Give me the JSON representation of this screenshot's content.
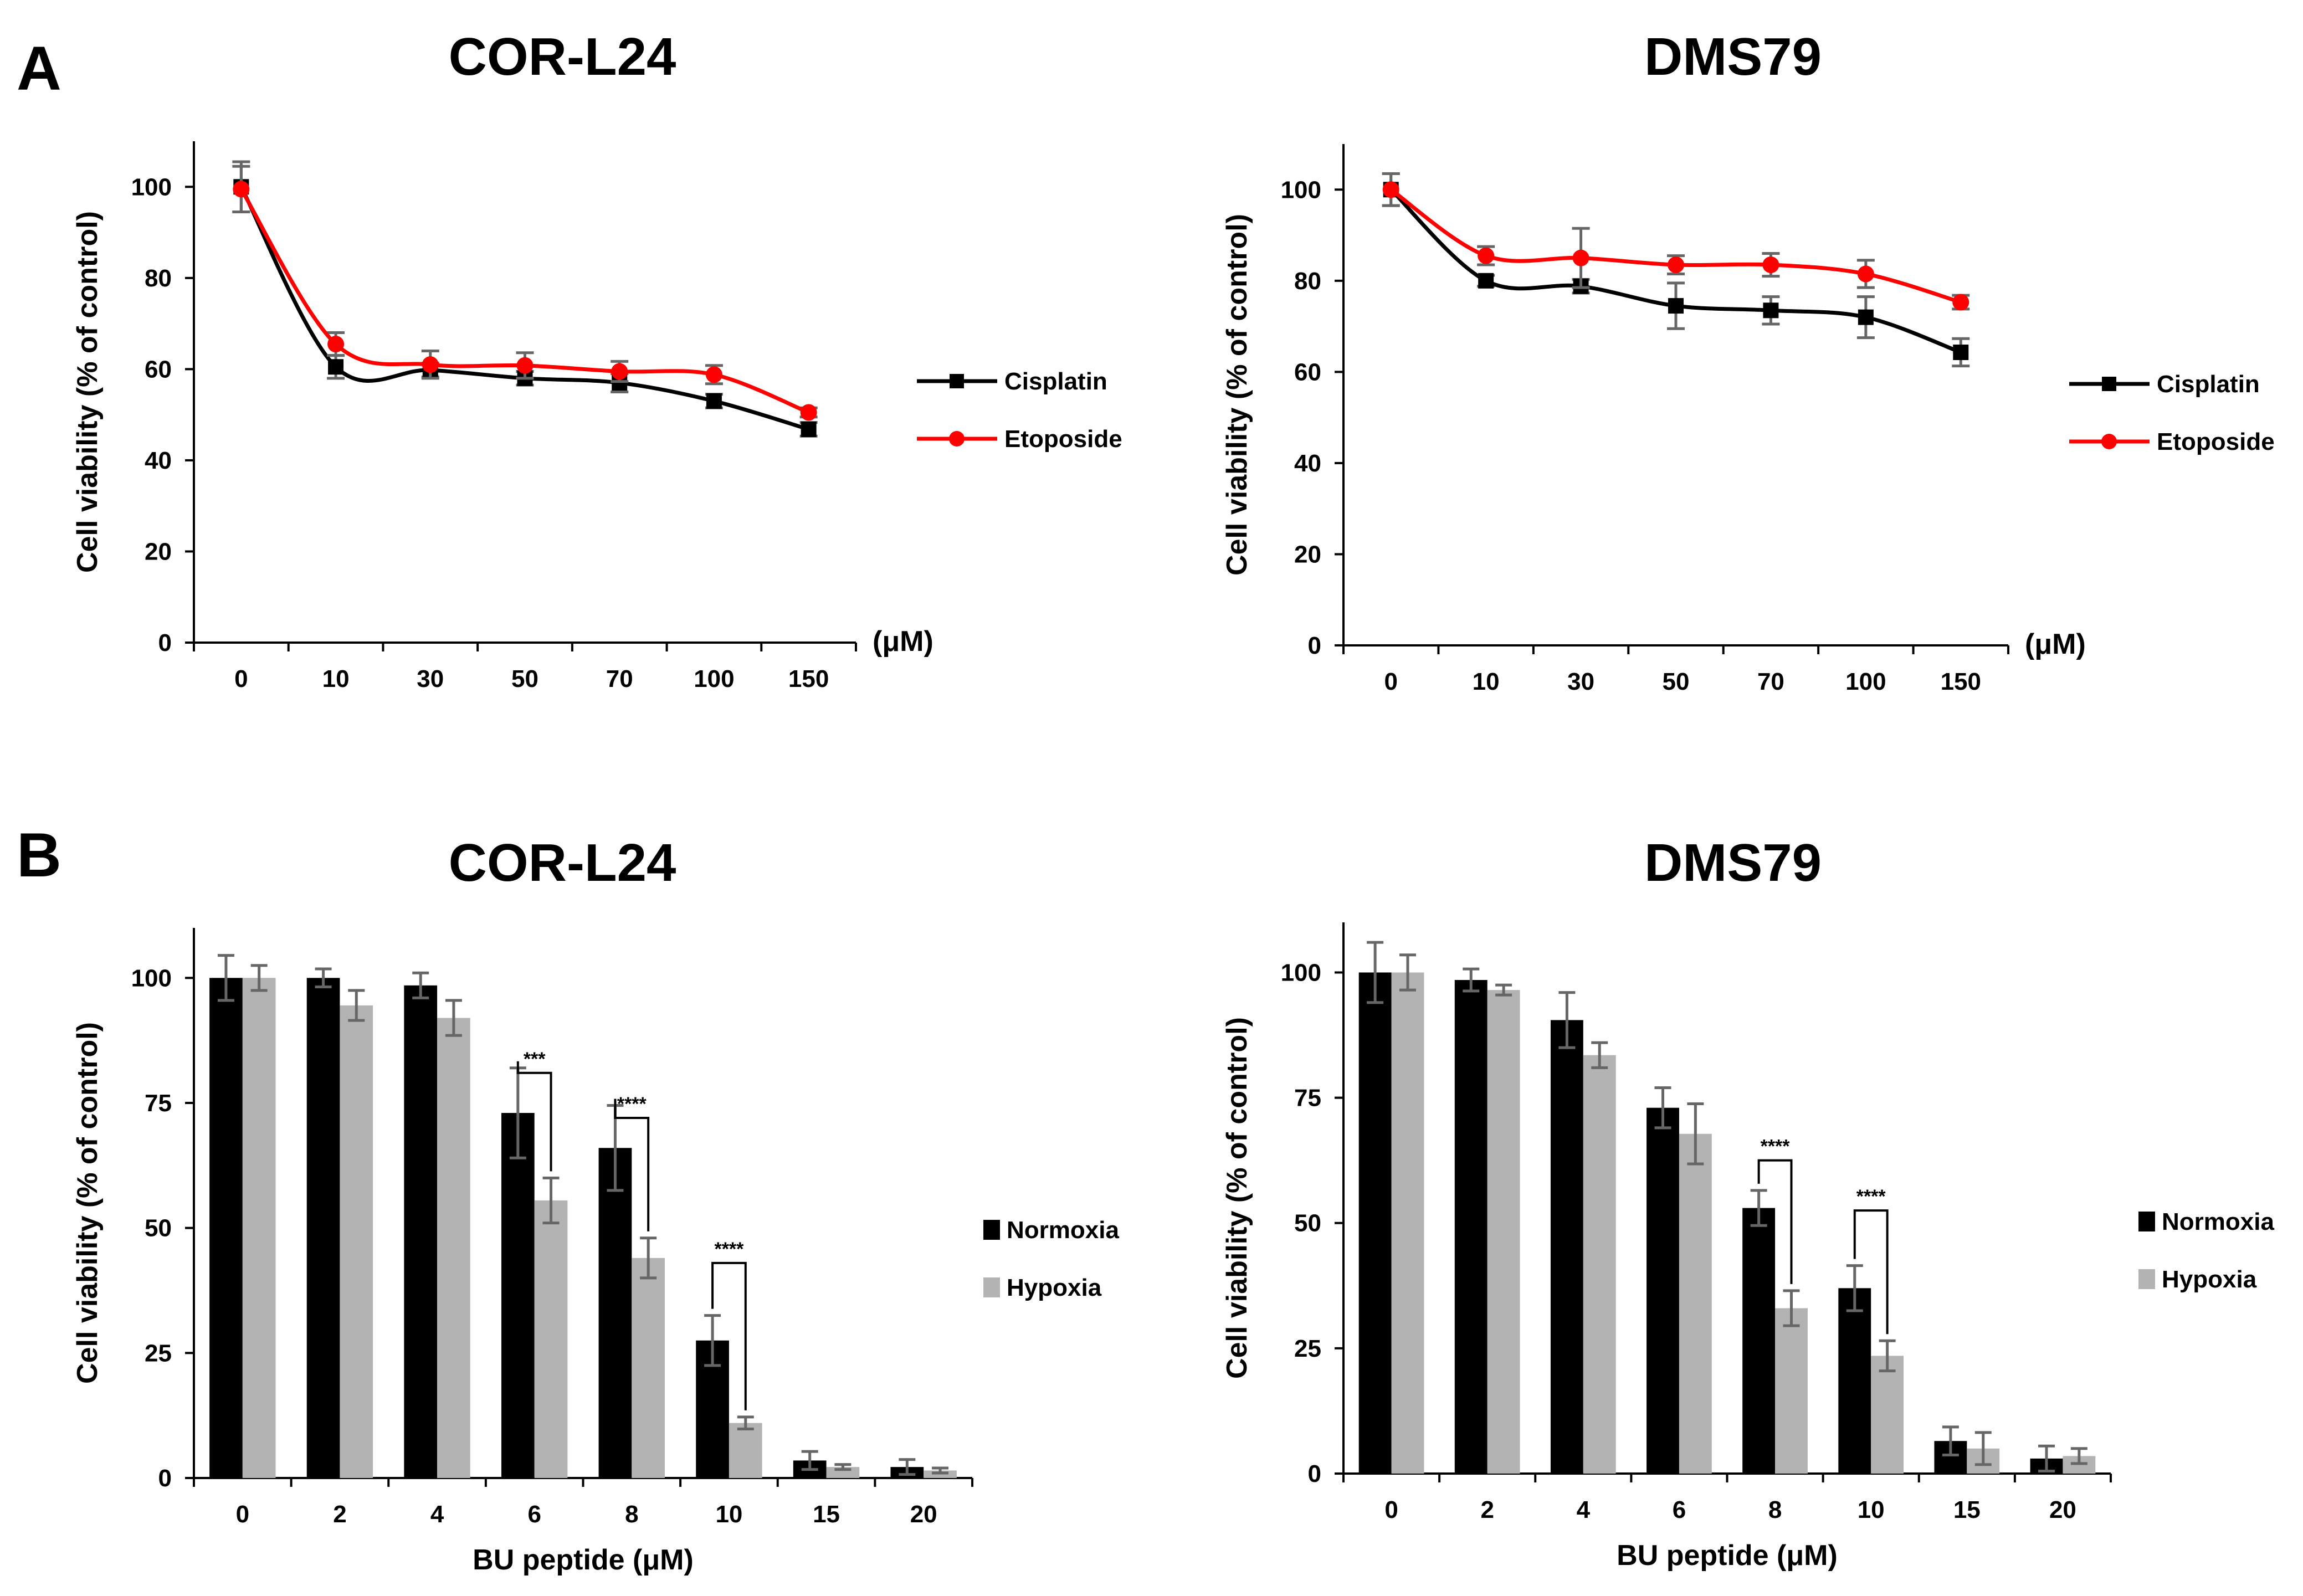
{
  "panels": {
    "A": "A",
    "B": "B"
  },
  "colors": {
    "cisplatin": "#000000",
    "etoposide": "#ff0000",
    "normoxia": "#000000",
    "hypoxia": "#b3b3b3",
    "error_bar": "#666666",
    "axis": "#000000"
  },
  "chart_data": [
    {
      "id": "A1",
      "panel": "A",
      "type": "line",
      "title": "COR-L24",
      "ylabel": "Cell viability (% of control)",
      "xlabel": "",
      "x_unit": "(μM)",
      "categories": [
        "0",
        "10",
        "30",
        "50",
        "70",
        "100",
        "150"
      ],
      "ylim": [
        0,
        110
      ],
      "yticks": [
        0,
        20,
        40,
        60,
        80,
        100
      ],
      "grid": false,
      "legend_position": "right",
      "series": [
        {
          "name": "Cisplatin",
          "color_key": "cisplatin",
          "marker": "square",
          "values": [
            100,
            60.5,
            59.8,
            58,
            57,
            53,
            46.8
          ],
          "errors": [
            5.5,
            2.5,
            1.5,
            1.5,
            2,
            1.5,
            1.5
          ]
        },
        {
          "name": "Etoposide",
          "color_key": "etoposide",
          "marker": "circle",
          "values": [
            99.5,
            65.5,
            61,
            60.8,
            59.5,
            58.8,
            50.5
          ],
          "errors": [
            5,
            2.5,
            3,
            2.8,
            2.2,
            2,
            1
          ]
        }
      ]
    },
    {
      "id": "A2",
      "panel": "A",
      "type": "line",
      "title": "DMS79",
      "ylabel": "Cell viability (% of control)",
      "xlabel": "",
      "x_unit": "(μM)",
      "categories": [
        "0",
        "10",
        "30",
        "50",
        "70",
        "100",
        "150"
      ],
      "ylim": [
        0,
        110
      ],
      "yticks": [
        0,
        20,
        40,
        60,
        80,
        100
      ],
      "grid": false,
      "legend_position": "right",
      "series": [
        {
          "name": "Cisplatin",
          "color_key": "cisplatin",
          "marker": "square",
          "values": [
            100,
            80,
            78.8,
            74.5,
            73.5,
            72,
            64.3
          ],
          "errors": [
            3.5,
            1.2,
            1.5,
            5,
            3,
            4.5,
            3
          ]
        },
        {
          "name": "Etoposide",
          "color_key": "etoposide",
          "marker": "circle",
          "values": [
            100,
            85.5,
            85,
            83.5,
            83.5,
            81.5,
            75.3
          ],
          "errors": [
            3.5,
            2,
            6.5,
            2,
            2.5,
            3,
            1.5
          ]
        }
      ]
    },
    {
      "id": "B1",
      "panel": "B",
      "type": "bar",
      "title": "COR-L24",
      "ylabel": "Cell viability (% of control)",
      "xlabel": "BU peptide (μM)",
      "categories": [
        "0",
        "2",
        "4",
        "6",
        "8",
        "10",
        "15",
        "20"
      ],
      "ylim": [
        0,
        110
      ],
      "yticks": [
        0,
        25,
        50,
        75,
        100
      ],
      "grid": false,
      "legend_position": "right",
      "series": [
        {
          "name": "Normoxia",
          "color_key": "normoxia",
          "values": [
            100,
            100,
            98.5,
            73,
            66,
            27.5,
            3.5,
            2.2
          ],
          "errors": [
            4.5,
            1.8,
            2.5,
            9,
            8.5,
            5,
            1.8,
            1.5
          ]
        },
        {
          "name": "Hypoxia",
          "color_key": "hypoxia",
          "values": [
            100,
            94.5,
            92,
            55.5,
            44,
            11,
            2.2,
            1.5
          ],
          "errors": [
            2.5,
            3,
            3.5,
            4.5,
            4,
            1.2,
            0.5,
            0.5
          ]
        }
      ],
      "significance": [
        {
          "category_index": 3,
          "label": "***",
          "level": 81
        },
        {
          "category_index": 4,
          "label": "****",
          "level": 72
        },
        {
          "category_index": 5,
          "label": "****",
          "level": 43
        }
      ]
    },
    {
      "id": "B2",
      "panel": "B",
      "type": "bar",
      "title": "DMS79",
      "ylabel": "Cell viability (% of control)",
      "xlabel": "BU peptide (μM)",
      "categories": [
        "0",
        "2",
        "4",
        "6",
        "8",
        "10",
        "15",
        "20"
      ],
      "ylim": [
        0,
        110
      ],
      "yticks": [
        0,
        25,
        50,
        75,
        100
      ],
      "grid": false,
      "legend_position": "right",
      "series": [
        {
          "name": "Normoxia",
          "color_key": "normoxia",
          "values": [
            100,
            98.5,
            90.5,
            73,
            53,
            37,
            6.5,
            3
          ],
          "errors": [
            6,
            2.2,
            5.5,
            4,
            3.5,
            4.5,
            2.8,
            2.5
          ]
        },
        {
          "name": "Hypoxia",
          "color_key": "hypoxia",
          "values": [
            100,
            96.5,
            83.5,
            67.8,
            33,
            23.5,
            5,
            3.5
          ],
          "errors": [
            3.5,
            1,
            2.5,
            6,
            3.5,
            3,
            3.2,
            1.5
          ]
        }
      ],
      "significance": [
        {
          "category_index": 4,
          "label": "****",
          "level": 62.5
        },
        {
          "category_index": 5,
          "label": "****",
          "level": 52.5
        }
      ]
    }
  ]
}
